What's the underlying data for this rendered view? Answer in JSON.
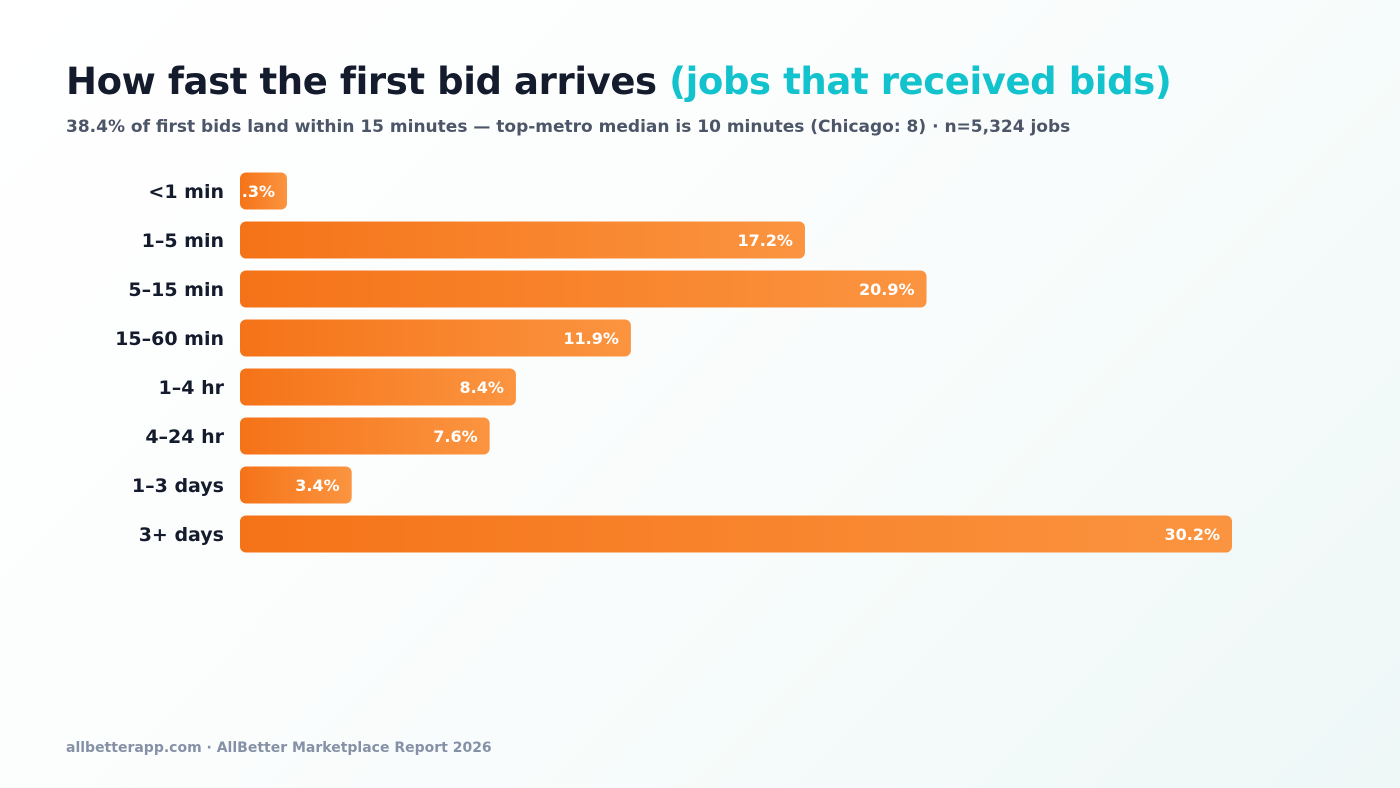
{
  "header": {
    "title": "How fast the first bid arrives",
    "title_accent": "(jobs that received bids)",
    "subtitle": "38.4% of first bids land within 15 minutes — top-metro median is 10 minutes (Chicago: 8) · n=5,324 jobs"
  },
  "chart_data": {
    "type": "bar",
    "orientation": "horizontal",
    "categories": [
      "<1 min",
      "1–5 min",
      "5–15 min",
      "15–60 min",
      "1–4 hr",
      "4–24 hr",
      "1–3 days",
      "3+ days"
    ],
    "values": [
      0.3,
      17.2,
      20.9,
      11.9,
      8.4,
      7.6,
      3.4,
      30.2
    ],
    "value_labels": [
      ".3%",
      "17.2%",
      "20.9%",
      "11.9%",
      "8.4%",
      "7.6%",
      "3.4%",
      "30.2%"
    ],
    "xlim": [
      0,
      30.2
    ],
    "grid": false,
    "bar_color_start": "#f57318",
    "bar_color_end": "#fb9440",
    "label_color": "#ffffff",
    "category_color": "#141b2d"
  },
  "colors": {
    "title": "#141b2d",
    "accent": "#12c2cc",
    "subtitle": "#4c5668",
    "footer": "#8591a6"
  },
  "footer": {
    "text": "allbetterapp.com · AllBetter Marketplace Report 2026"
  }
}
